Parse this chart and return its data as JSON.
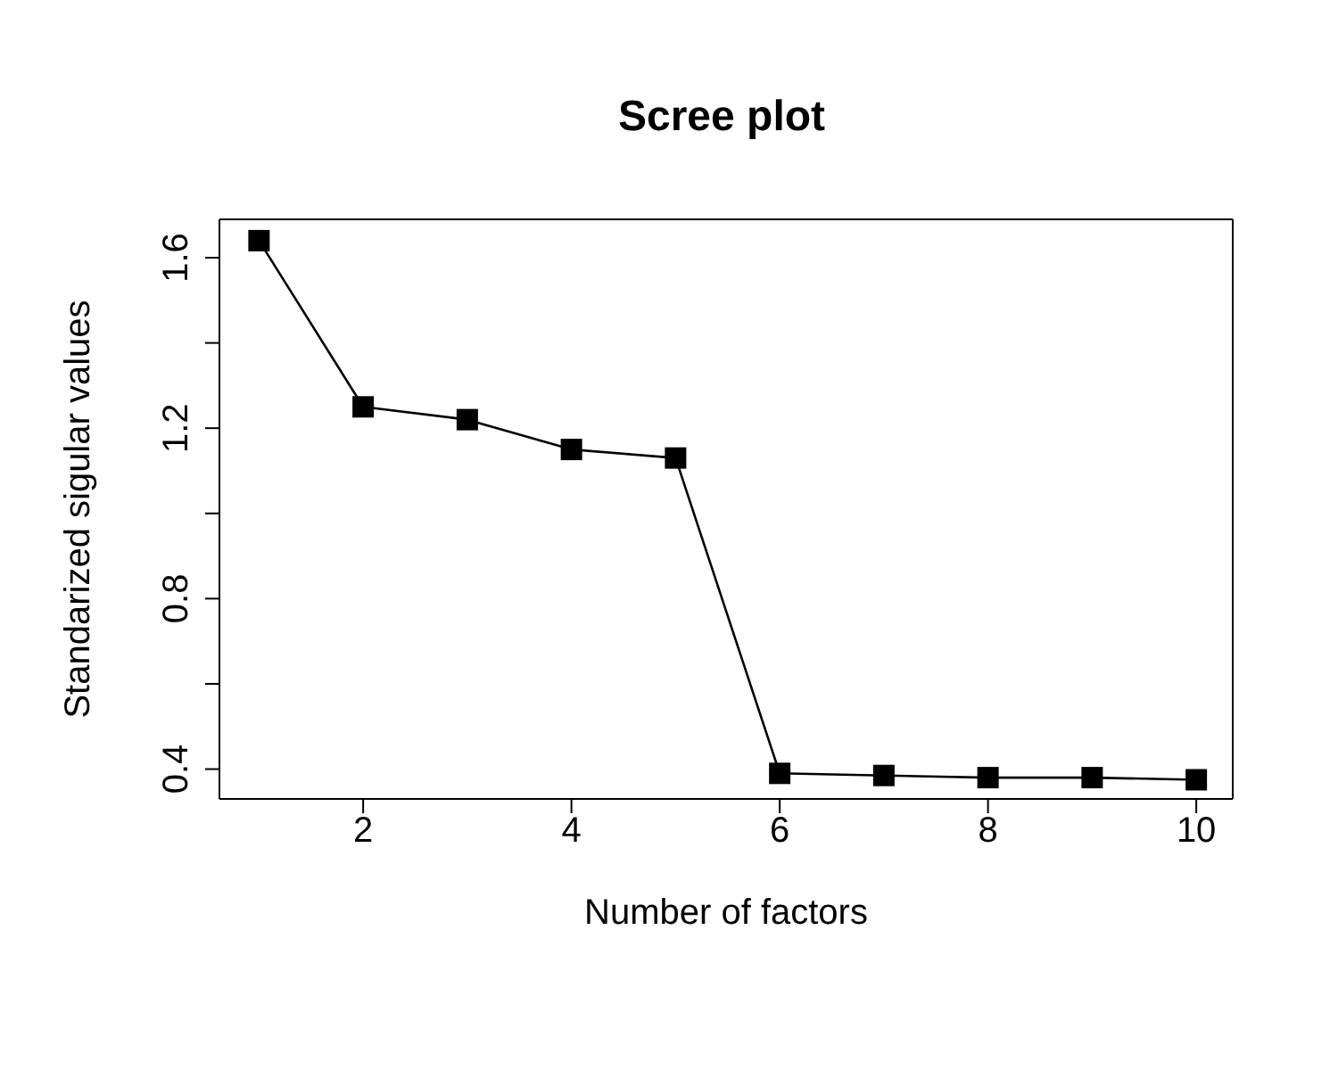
{
  "chart_data": {
    "type": "line",
    "title": "Scree plot",
    "xlabel": "Number of factors",
    "ylabel": "Standarized sigular values",
    "x": [
      1,
      2,
      3,
      4,
      5,
      6,
      7,
      8,
      9,
      10
    ],
    "series": [
      {
        "color": "#000000",
        "values": [
          1.64,
          1.25,
          1.22,
          1.15,
          1.13,
          0.39,
          0.385,
          0.38,
          0.38,
          0.375
        ]
      }
    ],
    "xlim": [
      0.62,
      10.35
    ],
    "xticks": [
      2,
      4,
      6,
      8,
      10
    ],
    "ylim": [
      0.33,
      1.69
    ],
    "yticks": [
      0.4,
      {
        "value": 0.6,
        "label": null
      },
      0.8,
      {
        "value": 1.0,
        "label": null
      },
      1.2,
      {
        "value": 1.4,
        "label": null
      },
      1.6
    ],
    "marker": "square",
    "line_style": "solid"
  }
}
